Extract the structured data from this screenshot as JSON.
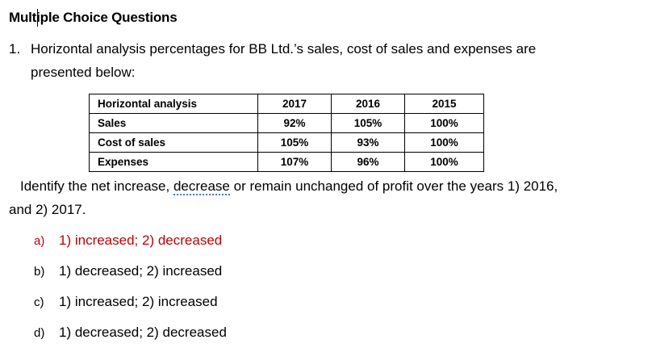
{
  "heading": "Multiple Choice Questions",
  "question": {
    "number": "1.",
    "line1": "Horizontal analysis percentages for BB Ltd.’s sales, cost of sales and expenses are",
    "line2": "presented below:",
    "prompt_before": "Identify the net increase, ",
    "prompt_underlined": "decrease",
    "prompt_after": " or remain unchanged of profit over the years 1) 2016,",
    "prompt_line2": "and 2) 2017."
  },
  "table": {
    "header": [
      "Horizontal analysis",
      "2017",
      "2016",
      "2015"
    ],
    "rows": [
      [
        "Sales",
        "92%",
        "105%",
        "100%"
      ],
      [
        "Cost of sales",
        "105%",
        "93%",
        "100%"
      ],
      [
        "Expenses",
        "107%",
        "96%",
        "100%"
      ]
    ]
  },
  "options": [
    {
      "letter": "a)",
      "text": "1) increased; 2) decreased"
    },
    {
      "letter": "b)",
      "text": "1) decreased; 2) increased"
    },
    {
      "letter": "c)",
      "text": "1) increased; 2) increased"
    },
    {
      "letter": "d)",
      "text": "1) decreased; 2) decreased"
    }
  ],
  "colors": {
    "answer": "#c00000",
    "text": "#000000",
    "spellcheck": "#4a6fd8"
  }
}
